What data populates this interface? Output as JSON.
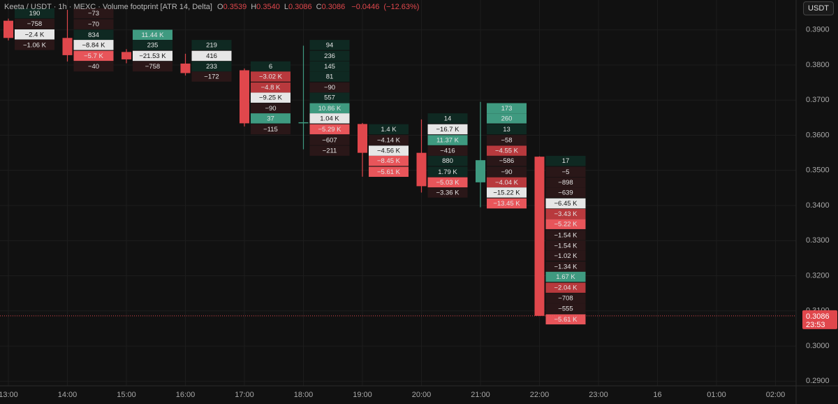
{
  "chart_data": {
    "type": "footprint",
    "title": "Keeta / USDT · 1h · MEXC · Volume footprint [ATR 14, Delta]",
    "stats": [
      {
        "key": "O",
        "value": 0.3539,
        "label": "0.3539"
      },
      {
        "key": "H",
        "value": 0.354,
        "label": "0.3540"
      },
      {
        "key": "L",
        "value": 0.3086,
        "label": "0.3086"
      },
      {
        "key": "C",
        "value": 0.3086,
        "label": "0.3086"
      }
    ],
    "change": {
      "value": -0.0446,
      "label": "−0.0446"
    },
    "change_pct": {
      "value": -12.63,
      "label": "(−12.63%)"
    },
    "currency": "USDT",
    "last_price": {
      "value": 0.3086,
      "label": "0.3086"
    },
    "countdown": "23:53",
    "up_color": "#3f9a80",
    "down_color": "#e0474c",
    "categories": [
      "13:00",
      "14:00",
      "15:00",
      "16:00",
      "17:00",
      "18:00",
      "19:00",
      "20:00",
      "21:00",
      "22:00",
      "23:00",
      "16",
      "01:00",
      "02:00"
    ],
    "ylim": [
      0.2835,
      0.3985
    ],
    "yticks": [
      {
        "value": 0.39,
        "label": "0.3900"
      },
      {
        "value": 0.38,
        "label": "0.3800"
      },
      {
        "value": 0.37,
        "label": "0.3700"
      },
      {
        "value": 0.36,
        "label": "0.3600"
      },
      {
        "value": 0.35,
        "label": "0.3500"
      },
      {
        "value": 0.34,
        "label": "0.3400"
      },
      {
        "value": 0.33,
        "label": "0.3300"
      },
      {
        "value": 0.32,
        "label": "0.3200"
      },
      {
        "value": 0.31,
        "label": "0.3100"
      },
      {
        "value": 0.3,
        "label": "0.3000"
      },
      {
        "value": 0.29,
        "label": "0.2900"
      }
    ],
    "grid": true,
    "candles": [
      {
        "open": 0.3926,
        "high": 0.3932,
        "low": 0.387,
        "close": 0.3877,
        "poc": 2,
        "highlights": [],
        "levels": [
          0.3947,
          0.3917,
          0.3887,
          0.3857
        ],
        "deltas": [
          190,
          -758,
          -2400,
          -1060
        ],
        "delta_labels": [
          "190",
          "−758",
          "−2.4 K",
          "−1.06 K"
        ]
      },
      {
        "open": 0.3877,
        "high": 0.3957,
        "low": 0.381,
        "close": 0.3828,
        "poc": 3,
        "highlights": [
          4
        ],
        "levels": [
          0.3947,
          0.3916,
          0.3886,
          0.3857,
          0.3826,
          0.3796
        ],
        "deltas": [
          -73,
          -70,
          834,
          -8840,
          -5700,
          -40
        ],
        "delta_labels": [
          "−73",
          "−70",
          "834",
          "−8.84 K",
          "−5.7 K",
          "−40"
        ]
      },
      {
        "open": 0.3837,
        "high": 0.3845,
        "low": 0.3805,
        "close": 0.3816,
        "poc": 2,
        "highlights": [
          0
        ],
        "levels": [
          0.3886,
          0.3857,
          0.3826,
          0.3796
        ],
        "deltas": [
          11440,
          235,
          -21530,
          -758
        ],
        "delta_labels": [
          "11.44 K",
          "235",
          "−21.53 K",
          "−758"
        ]
      },
      {
        "open": 0.3804,
        "high": 0.3832,
        "low": 0.377,
        "close": 0.3777,
        "poc": 1,
        "highlights": [],
        "levels": [
          0.3857,
          0.3826,
          0.3796,
          0.3767
        ],
        "deltas": [
          219,
          416,
          233,
          -172
        ],
        "delta_labels": [
          "219",
          "416",
          "233",
          "−172"
        ]
      },
      {
        "open": 0.3785,
        "high": 0.379,
        "low": 0.3625,
        "close": 0.3634,
        "poc": 3,
        "highlights": [
          1,
          2,
          5
        ],
        "levels": [
          0.3796,
          0.3767,
          0.3736,
          0.3707,
          0.3677,
          0.3648,
          0.3617
        ],
        "deltas": [
          6,
          -3020,
          -4800,
          -9250,
          -90,
          37,
          -115
        ],
        "delta_labels": [
          "6",
          "−3.02 K",
          "−4.8 K",
          "−9.25 K",
          "−90",
          "37",
          "−115"
        ]
      },
      {
        "open": 0.3634,
        "high": 0.3855,
        "low": 0.356,
        "close": 0.3637,
        "poc": 7,
        "highlights": [
          6,
          8
        ],
        "levels": [
          0.3857,
          0.3826,
          0.3796,
          0.3767,
          0.3736,
          0.3707,
          0.3677,
          0.3648,
          0.3617,
          0.3586,
          0.3556
        ],
        "deltas": [
          94,
          236,
          145,
          81,
          -90,
          557,
          10860,
          1040,
          -5290,
          -607,
          -211
        ],
        "delta_labels": [
          "94",
          "236",
          "145",
          "81",
          "−90",
          "557",
          "10.86 K",
          "1.04 K",
          "−5.29 K",
          "−607",
          "−211"
        ]
      },
      {
        "open": 0.3632,
        "high": 0.3635,
        "low": 0.3482,
        "close": 0.355,
        "poc": 2,
        "highlights": [
          3,
          4
        ],
        "levels": [
          0.3617,
          0.3586,
          0.3556,
          0.3527,
          0.3496
        ],
        "deltas": [
          1400,
          -4140,
          -4560,
          -8450,
          -5610
        ],
        "delta_labels": [
          "1.4 K",
          "−4.14 K",
          "−4.56 K",
          "−8.45 K",
          "−5.61 K"
        ]
      },
      {
        "open": 0.355,
        "high": 0.3645,
        "low": 0.3437,
        "close": 0.3455,
        "poc": 1,
        "highlights": [
          2,
          6
        ],
        "levels": [
          0.3648,
          0.3617,
          0.3586,
          0.3556,
          0.3527,
          0.3496,
          0.3466,
          0.3437
        ],
        "deltas": [
          14,
          -16700,
          11370,
          -416,
          880,
          1790,
          -5030,
          -3360
        ],
        "delta_labels": [
          "14",
          "−16.7 K",
          "11.37 K",
          "−416",
          "880",
          "1.79 K",
          "−5.03 K",
          "−3.36 K"
        ]
      },
      {
        "open": 0.3466,
        "high": 0.3695,
        "low": 0.3395,
        "close": 0.3529,
        "poc": 8,
        "highlights": [
          0,
          1,
          4,
          7,
          9
        ],
        "levels": [
          0.3677,
          0.3648,
          0.3617,
          0.3586,
          0.3556,
          0.3527,
          0.3496,
          0.3466,
          0.3437,
          0.3406
        ],
        "deltas": [
          173,
          260,
          13,
          -58,
          -4550,
          -586,
          -90,
          -4040,
          -15220,
          -13450
        ],
        "delta_labels": [
          "173",
          "260",
          "13",
          "−58",
          "−4.55 K",
          "−586",
          "−90",
          "−4.04 K",
          "−15.22 K",
          "−13.45 K"
        ]
      },
      {
        "open": 0.3539,
        "high": 0.354,
        "low": 0.3086,
        "close": 0.3086,
        "poc": 4,
        "highlights": [
          5,
          6,
          11,
          12,
          15
        ],
        "levels": [
          0.3527,
          0.3496,
          0.3466,
          0.3437,
          0.3406,
          0.3376,
          0.3347,
          0.3316,
          0.3286,
          0.3257,
          0.3226,
          0.3197,
          0.3166,
          0.3136,
          0.3107,
          0.3076
        ],
        "deltas": [
          17,
          -5,
          -898,
          -639,
          -6450,
          -3430,
          -5220,
          -1540,
          -1540,
          -1020,
          -1340,
          1670,
          -2040,
          -708,
          -555,
          -5610
        ],
        "delta_labels": [
          "17",
          "−5",
          "−898",
          "−639",
          "−6.45 K",
          "−3.43 K",
          "−5.22 K",
          "−1.54 K",
          "−1.54 K",
          "−1.02 K",
          "−1.34 K",
          "1.67 K",
          "−2.04 K",
          "−708",
          "−555",
          "−5.61 K"
        ]
      }
    ]
  }
}
